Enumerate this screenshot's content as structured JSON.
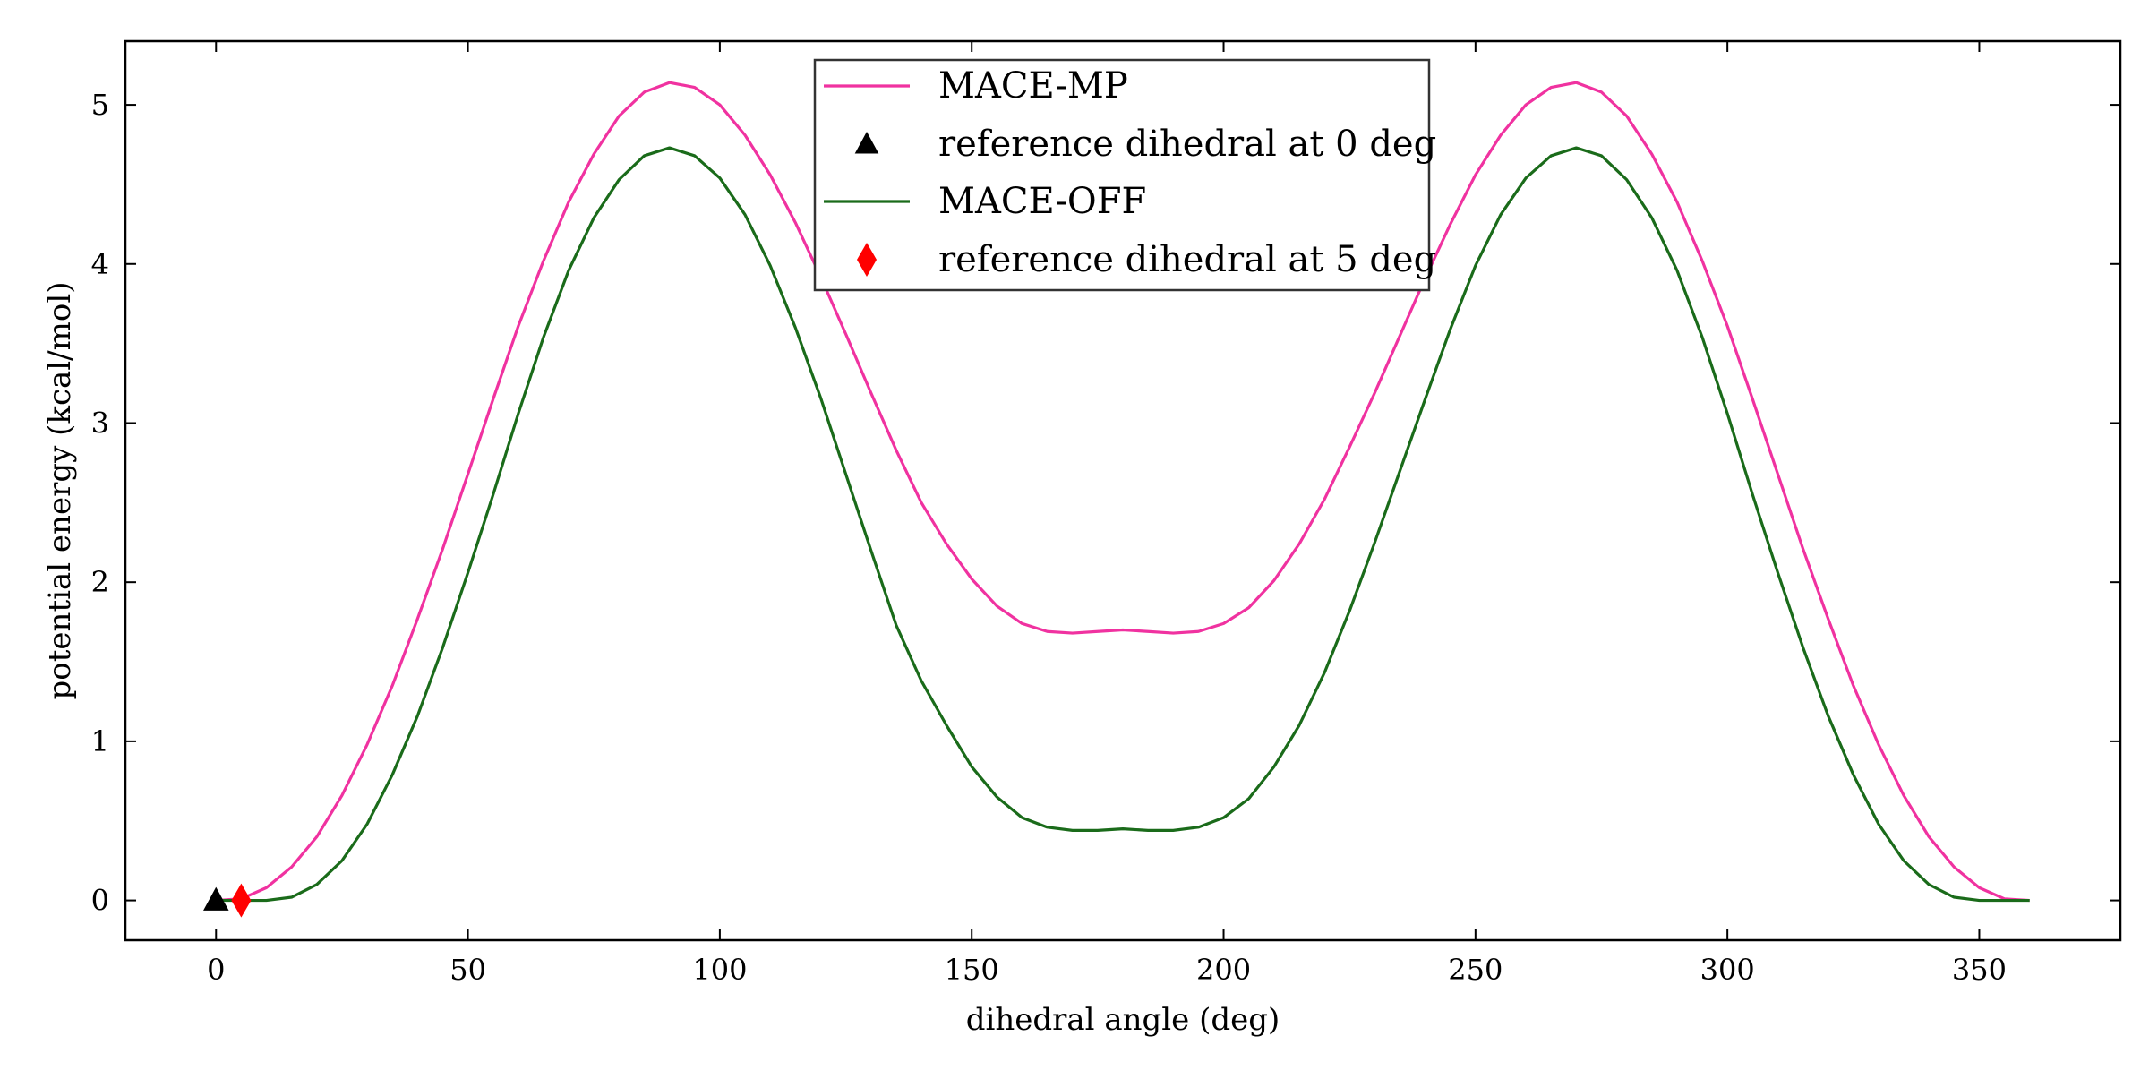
{
  "chart_data": {
    "type": "line",
    "xlabel": "dihedral angle (deg)",
    "ylabel": "potential energy (kcal/mol)",
    "xlim": [
      -18,
      378
    ],
    "ylim": [
      -0.25,
      5.4
    ],
    "xticks": [
      0,
      50,
      100,
      150,
      200,
      250,
      300,
      350
    ],
    "yticks": [
      0,
      1,
      2,
      3,
      4,
      5
    ],
    "tick_direction": "in",
    "grid": false,
    "legend_position": "top-center",
    "x": [
      0,
      5,
      10,
      15,
      20,
      25,
      30,
      35,
      40,
      45,
      50,
      55,
      60,
      65,
      70,
      75,
      80,
      85,
      90,
      95,
      100,
      105,
      110,
      115,
      120,
      125,
      130,
      135,
      140,
      145,
      150,
      155,
      160,
      165,
      170,
      175,
      180,
      185,
      190,
      195,
      200,
      205,
      210,
      215,
      220,
      225,
      230,
      235,
      240,
      245,
      250,
      255,
      260,
      265,
      270,
      275,
      280,
      285,
      290,
      295,
      300,
      305,
      310,
      315,
      320,
      325,
      330,
      335,
      340,
      345,
      350,
      355,
      360
    ],
    "series": [
      {
        "name": "MACE-MP",
        "type": "line",
        "color": "#f032a0",
        "values": [
          0,
          0.01,
          0.08,
          0.21,
          0.4,
          0.66,
          0.98,
          1.35,
          1.77,
          2.21,
          2.68,
          3.15,
          3.61,
          4.02,
          4.39,
          4.69,
          4.93,
          5.08,
          5.14,
          5.11,
          5.0,
          4.81,
          4.56,
          4.26,
          3.92,
          3.56,
          3.19,
          2.83,
          2.5,
          2.24,
          2.02,
          1.85,
          1.74,
          1.69,
          1.68,
          1.69,
          1.7,
          1.69,
          1.68,
          1.69,
          1.74,
          1.84,
          2.01,
          2.24,
          2.52,
          2.85,
          3.19,
          3.55,
          3.91,
          4.25,
          4.56,
          4.81,
          5.0,
          5.11,
          5.14,
          5.08,
          4.93,
          4.69,
          4.39,
          4.02,
          3.61,
          3.15,
          2.68,
          2.21,
          1.77,
          1.35,
          0.98,
          0.66,
          0.4,
          0.21,
          0.08,
          0.01,
          0.0
        ]
      },
      {
        "name": "MACE-OFF",
        "type": "line",
        "color": "#1a6b1a",
        "values": [
          0,
          0,
          0,
          0.02,
          0.1,
          0.25,
          0.48,
          0.79,
          1.16,
          1.59,
          2.06,
          2.55,
          3.06,
          3.54,
          3.96,
          4.29,
          4.53,
          4.68,
          4.73,
          4.68,
          4.54,
          4.31,
          3.99,
          3.6,
          3.16,
          2.68,
          2.2,
          1.73,
          1.38,
          1.1,
          0.84,
          0.65,
          0.52,
          0.46,
          0.44,
          0.44,
          0.45,
          0.44,
          0.44,
          0.46,
          0.52,
          0.64,
          0.84,
          1.1,
          1.43,
          1.82,
          2.25,
          2.7,
          3.15,
          3.59,
          3.99,
          4.31,
          4.54,
          4.68,
          4.73,
          4.68,
          4.53,
          4.29,
          3.96,
          3.54,
          3.06,
          2.55,
          2.06,
          1.59,
          1.16,
          0.79,
          0.48,
          0.25,
          0.1,
          0.02,
          0,
          0,
          0
        ]
      },
      {
        "name": "reference dihedral at 0 deg",
        "type": "scatter",
        "marker": "triangle",
        "color": "#000000",
        "points": [
          {
            "x": 0,
            "y": 0
          }
        ]
      },
      {
        "name": "reference dihedral at 5 deg",
        "type": "scatter",
        "marker": "diamond",
        "color": "#ff0000",
        "points": [
          {
            "x": 5,
            "y": 0
          }
        ]
      }
    ]
  }
}
